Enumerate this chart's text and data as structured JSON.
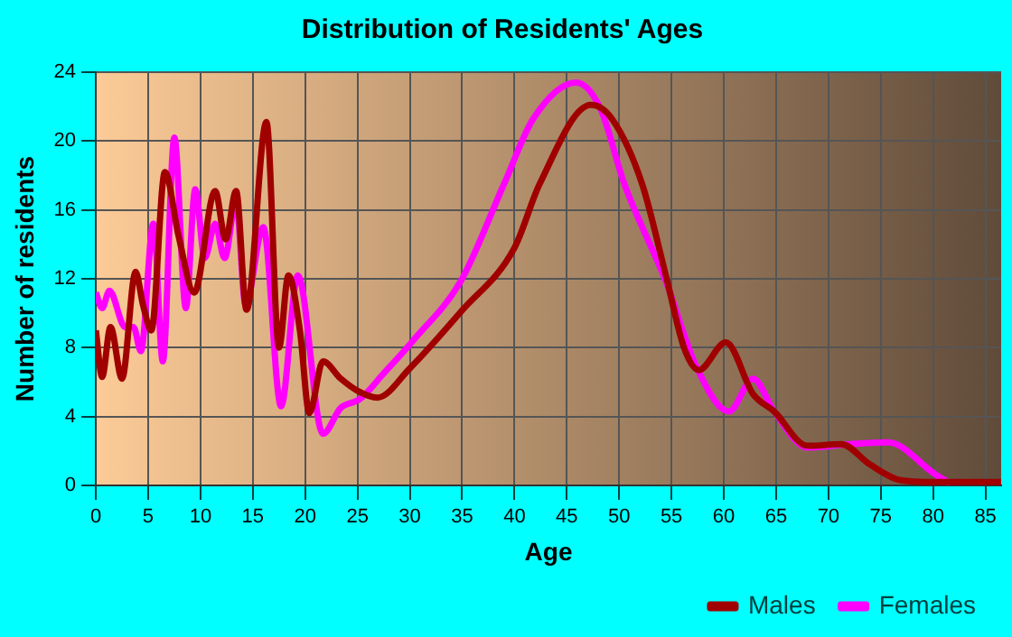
{
  "chart_data": {
    "type": "line",
    "title": "Distribution of Residents' Ages",
    "xlabel": "Age",
    "ylabel": "Number of residents",
    "xlim": [
      0,
      86.5
    ],
    "xticks": [
      0,
      5,
      10,
      15,
      20,
      25,
      30,
      35,
      40,
      45,
      50,
      55,
      60,
      65,
      70,
      75,
      80,
      85
    ],
    "ylim": [
      0,
      24
    ],
    "yticks": [
      0,
      4,
      8,
      12,
      16,
      20,
      24
    ],
    "grid": true,
    "legend": "bottom right",
    "marker": "none",
    "line_style": "solid",
    "series": [
      {
        "name": "Males",
        "color": "#a00000",
        "x": [
          0,
          0.6,
          1.4,
          2.5,
          3.8,
          4.5,
          5.3,
          6.6,
          7.9,
          9.4,
          11.4,
          12.4,
          13.4,
          14.4,
          16.3,
          17.5,
          18.4,
          19.5,
          20.4,
          21.7,
          23.4,
          25,
          26.9,
          30,
          34.9,
          40,
          42.4,
          47.3,
          49.3,
          52.2,
          54.5,
          56.2,
          57.6,
          60.2,
          62.8,
          64.8,
          68,
          71.2,
          74,
          76.9,
          80,
          86.5
        ],
        "values": [
          9,
          6.3,
          9.2,
          6.2,
          12.4,
          10.5,
          9,
          18.2,
          14.5,
          11.2,
          17.1,
          14.3,
          17.1,
          10.2,
          21.1,
          8,
          12.2,
          9,
          4.2,
          7.2,
          6.2,
          5.5,
          5.1,
          6.8,
          10.1,
          13.8,
          17.5,
          22.1,
          21.3,
          17.5,
          12.1,
          8,
          6.7,
          8.3,
          5.3,
          4.3,
          2.3,
          2.4,
          1.2,
          0.3,
          0.2,
          0.2
        ]
      },
      {
        "name": "Females",
        "color": "#ff00ff",
        "x": [
          0,
          0.6,
          1.3,
          2.8,
          3.6,
          4.3,
          5.5,
          6.4,
          7.5,
          8.6,
          9.5,
          10.4,
          11.4,
          12.3,
          13.4,
          14.3,
          16,
          17.7,
          19.3,
          21.7,
          23.4,
          25.2,
          27.5,
          30.3,
          34.9,
          39,
          41.8,
          45.9,
          48.2,
          50.5,
          54.5,
          57.3,
          60.5,
          62.8,
          64.8,
          68,
          72,
          75.7,
          80.3,
          81.7
        ],
        "values": [
          11.2,
          10.3,
          11.3,
          9.2,
          9.2,
          7.8,
          15.2,
          7.2,
          20.2,
          10.3,
          17.2,
          13.2,
          15.2,
          13.2,
          16.5,
          10.5,
          15,
          4.6,
          12.2,
          3,
          4.5,
          5,
          6.5,
          8.4,
          11.9,
          17.5,
          21.3,
          23.4,
          21.9,
          17.5,
          11.8,
          7,
          4.3,
          6.2,
          4.3,
          2.2,
          2.4,
          2.5,
          0.6,
          0.1
        ]
      }
    ]
  }
}
